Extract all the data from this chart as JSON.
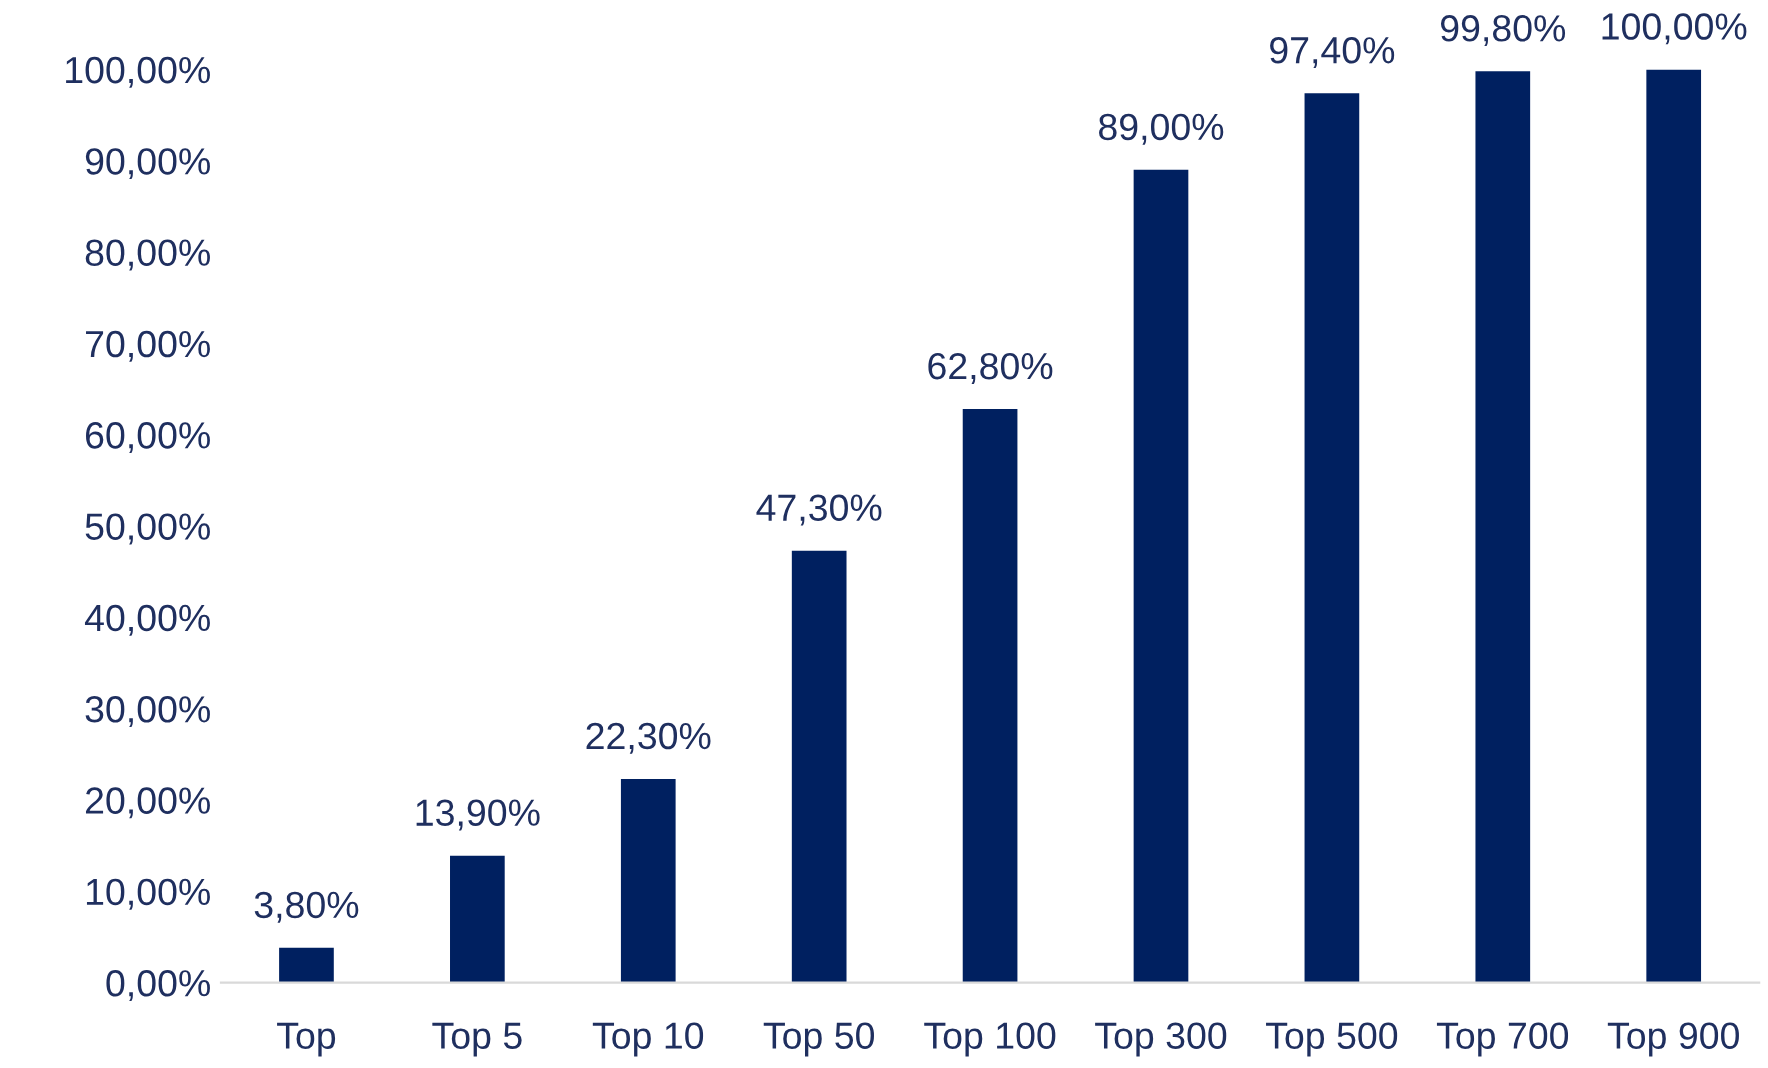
{
  "chart_data": {
    "type": "bar",
    "categories": [
      "Top",
      "Top 5",
      "Top 10",
      "Top 50",
      "Top 100",
      "Top 300",
      "Top 500",
      "Top 700",
      "Top 900"
    ],
    "values": [
      3.8,
      13.9,
      22.3,
      47.3,
      62.8,
      89.0,
      97.4,
      99.8,
      100.0
    ],
    "value_labels": [
      "3,80%",
      "13,90%",
      "22,30%",
      "47,30%",
      "62,80%",
      "89,00%",
      "97,40%",
      "99,80%",
      "100,00%"
    ],
    "color": "#002060",
    "ylim": [
      0,
      100
    ],
    "yticks": [
      {
        "value": 0,
        "label": "0,00%"
      },
      {
        "value": 10,
        "label": "10,00%"
      },
      {
        "value": 20,
        "label": "20,00%"
      },
      {
        "value": 30,
        "label": "30,00%"
      },
      {
        "value": 40,
        "label": "40,00%"
      },
      {
        "value": 50,
        "label": "50,00%"
      },
      {
        "value": 60,
        "label": "60,00%"
      },
      {
        "value": 70,
        "label": "70,00%"
      },
      {
        "value": 80,
        "label": "80,00%"
      },
      {
        "value": 90,
        "label": "90,00%"
      },
      {
        "value": 100,
        "label": "100,00%"
      }
    ],
    "grid": false,
    "legend": false
  }
}
